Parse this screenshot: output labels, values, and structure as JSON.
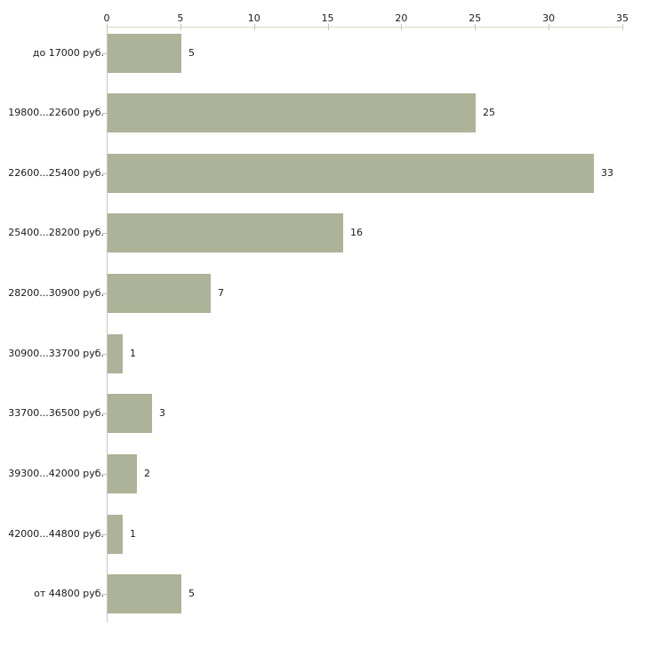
{
  "chart_data": {
    "type": "bar",
    "orientation": "horizontal",
    "title": "",
    "xlabel": "",
    "ylabel": "",
    "categories": [
      "до 17000 руб.",
      "19800...22600 руб.",
      "22600...25400 руб.",
      "25400...28200 руб.",
      "28200...30900 руб.",
      "30900...33700 руб.",
      "33700...36500 руб.",
      "39300...42000 руб.",
      "42000...44800 руб.",
      "от 44800 руб."
    ],
    "values": [
      5,
      25,
      33,
      16,
      7,
      1,
      3,
      2,
      1,
      5
    ],
    "xlim": [
      0,
      35
    ],
    "x_ticks": [
      0,
      5,
      10,
      15,
      20,
      25,
      30,
      35
    ],
    "axis_position": "top",
    "grid": false,
    "legend": false,
    "data_labels": true,
    "colors": {
      "bar": "#acb398",
      "axis_line": "#d9d9c3",
      "axis_tick": "#c6c6a8",
      "category_axis_line": "#c6c6c6",
      "text": "#1a1a1a",
      "background": "#ffffff"
    }
  }
}
